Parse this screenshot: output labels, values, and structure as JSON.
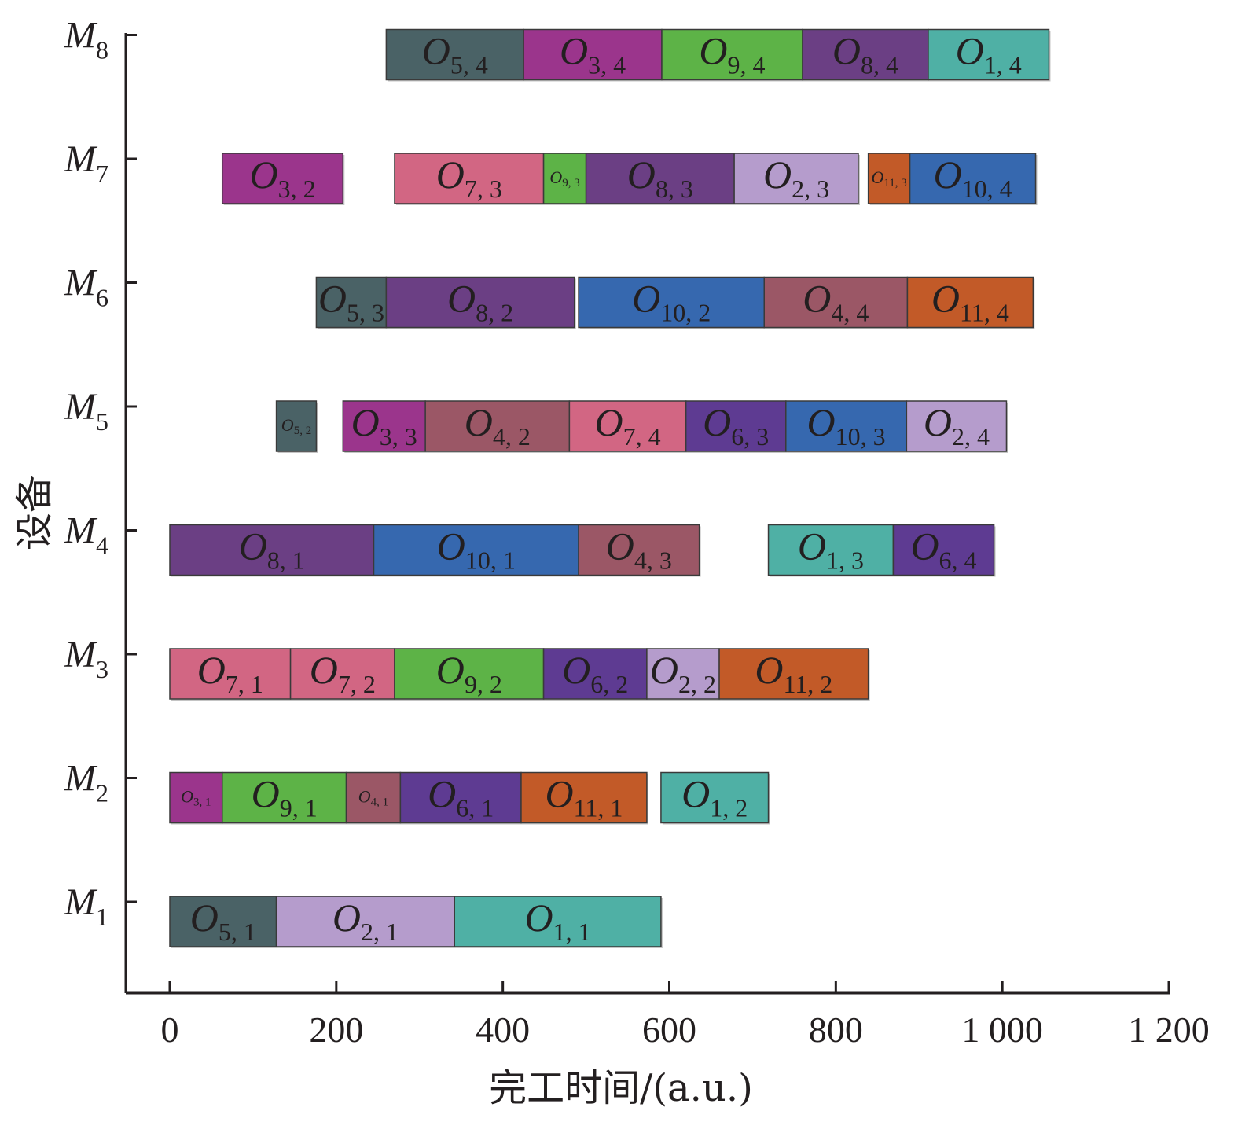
{
  "chart_data": {
    "type": "gantt",
    "xlabel": "完工时间/(a.u.)",
    "ylabel": "设备",
    "xlim": [
      0,
      1200
    ],
    "xticks": [
      0,
      200,
      400,
      600,
      800,
      1000,
      1200
    ],
    "xtick_labels": [
      "0",
      "200",
      "400",
      "600",
      "800",
      "1 000",
      "1 200"
    ],
    "machine_prefix": "M",
    "op_prefix": "O",
    "machines": [
      "1",
      "2",
      "3",
      "4",
      "5",
      "6",
      "7",
      "8"
    ],
    "job_colors": {
      "1": "#4fb0a5",
      "2": "#b59ccc",
      "3": "#9b358c",
      "4": "#9b5766",
      "5": "#4a6266",
      "6": "#5e3b92",
      "7": "#d26683",
      "8": "#6b3f84",
      "9": "#5db347",
      "10": "#3668af",
      "11": "#c25a28"
    },
    "operations": [
      {
        "machine": "1",
        "job": "5",
        "op": "1",
        "label": "5, 1",
        "start": 0,
        "end": 128
      },
      {
        "machine": "1",
        "job": "2",
        "op": "1",
        "label": "2, 1",
        "start": 128,
        "end": 342
      },
      {
        "machine": "1",
        "job": "1",
        "op": "1",
        "label": "1, 1",
        "start": 342,
        "end": 590
      },
      {
        "machine": "2",
        "job": "3",
        "op": "1",
        "label": "3, 1",
        "start": 0,
        "end": 63
      },
      {
        "machine": "2",
        "job": "9",
        "op": "1",
        "label": "9, 1",
        "start": 63,
        "end": 212
      },
      {
        "machine": "2",
        "job": "4",
        "op": "1",
        "label": "4, 1",
        "start": 212,
        "end": 277
      },
      {
        "machine": "2",
        "job": "6",
        "op": "1",
        "label": "6, 1",
        "start": 277,
        "end": 422
      },
      {
        "machine": "2",
        "job": "11",
        "op": "1",
        "label": "11, 1",
        "start": 422,
        "end": 573
      },
      {
        "machine": "2",
        "job": "1",
        "op": "2",
        "label": "1, 2",
        "start": 590,
        "end": 719
      },
      {
        "machine": "3",
        "job": "7",
        "op": "1",
        "label": "7, 1",
        "start": 0,
        "end": 145
      },
      {
        "machine": "3",
        "job": "7",
        "op": "2",
        "label": "7, 2",
        "start": 145,
        "end": 270
      },
      {
        "machine": "3",
        "job": "9",
        "op": "2",
        "label": "9, 2",
        "start": 270,
        "end": 449
      },
      {
        "machine": "3",
        "job": "6",
        "op": "2",
        "label": "6, 2",
        "start": 449,
        "end": 573
      },
      {
        "machine": "3",
        "job": "2",
        "op": "2",
        "label": "2, 2",
        "start": 573,
        "end": 660
      },
      {
        "machine": "3",
        "job": "11",
        "op": "2",
        "label": "11, 2",
        "start": 660,
        "end": 839
      },
      {
        "machine": "4",
        "job": "8",
        "op": "1",
        "label": "8, 1",
        "start": 0,
        "end": 245
      },
      {
        "machine": "4",
        "job": "10",
        "op": "1",
        "label": "10, 1",
        "start": 245,
        "end": 491
      },
      {
        "machine": "4",
        "job": "4",
        "op": "3",
        "label": "4, 3",
        "start": 491,
        "end": 636
      },
      {
        "machine": "4",
        "job": "1",
        "op": "3",
        "label": "1, 3",
        "start": 719,
        "end": 869
      },
      {
        "machine": "4",
        "job": "6",
        "op": "4",
        "label": "6, 4",
        "start": 869,
        "end": 990
      },
      {
        "machine": "5",
        "job": "5",
        "op": "2",
        "label": "5, 2",
        "start": 128,
        "end": 176
      },
      {
        "machine": "5",
        "job": "3",
        "op": "3",
        "label": "3, 3",
        "start": 208,
        "end": 307
      },
      {
        "machine": "5",
        "job": "4",
        "op": "2",
        "label": "4, 2",
        "start": 307,
        "end": 480
      },
      {
        "machine": "5",
        "job": "7",
        "op": "4",
        "label": "7, 4",
        "start": 480,
        "end": 620
      },
      {
        "machine": "5",
        "job": "6",
        "op": "3",
        "label": "6, 3",
        "start": 620,
        "end": 740
      },
      {
        "machine": "5",
        "job": "10",
        "op": "3",
        "label": "10, 3",
        "start": 740,
        "end": 885
      },
      {
        "machine": "5",
        "job": "2",
        "op": "4",
        "label": "2, 4",
        "start": 885,
        "end": 1005
      },
      {
        "machine": "6",
        "job": "5",
        "op": "3",
        "label": "5, 3",
        "start": 176,
        "end": 260
      },
      {
        "machine": "6",
        "job": "8",
        "op": "2",
        "label": "8, 2",
        "start": 260,
        "end": 486
      },
      {
        "machine": "6",
        "job": "10",
        "op": "2",
        "label": "10, 2",
        "start": 491,
        "end": 714
      },
      {
        "machine": "6",
        "job": "4",
        "op": "4",
        "label": "4, 4",
        "start": 714,
        "end": 886
      },
      {
        "machine": "6",
        "job": "11",
        "op": "4",
        "label": "11, 4",
        "start": 886,
        "end": 1037
      },
      {
        "machine": "7",
        "job": "3",
        "op": "2",
        "label": "3, 2",
        "start": 63,
        "end": 208
      },
      {
        "machine": "7",
        "job": "7",
        "op": "3",
        "label": "7, 3",
        "start": 270,
        "end": 449
      },
      {
        "machine": "7",
        "job": "9",
        "op": "3",
        "label": "9, 3",
        "start": 449,
        "end": 500
      },
      {
        "machine": "7",
        "job": "8",
        "op": "3",
        "label": "8, 3",
        "start": 500,
        "end": 678
      },
      {
        "machine": "7",
        "job": "2",
        "op": "3",
        "label": "2, 3",
        "start": 678,
        "end": 827
      },
      {
        "machine": "7",
        "job": "11",
        "op": "3",
        "label": "11, 3",
        "start": 839,
        "end": 889
      },
      {
        "machine": "7",
        "job": "10",
        "op": "4",
        "label": "10, 4",
        "start": 889,
        "end": 1040
      },
      {
        "machine": "8",
        "job": "5",
        "op": "4",
        "label": "5, 4",
        "start": 260,
        "end": 425
      },
      {
        "machine": "8",
        "job": "3",
        "op": "4",
        "label": "3, 4",
        "start": 425,
        "end": 591
      },
      {
        "machine": "8",
        "job": "9",
        "op": "4",
        "label": "9, 4",
        "start": 591,
        "end": 760
      },
      {
        "machine": "8",
        "job": "8",
        "op": "4",
        "label": "8, 4",
        "start": 760,
        "end": 911
      },
      {
        "machine": "8",
        "job": "1",
        "op": "4",
        "label": "1, 4",
        "start": 911,
        "end": 1056
      }
    ]
  }
}
